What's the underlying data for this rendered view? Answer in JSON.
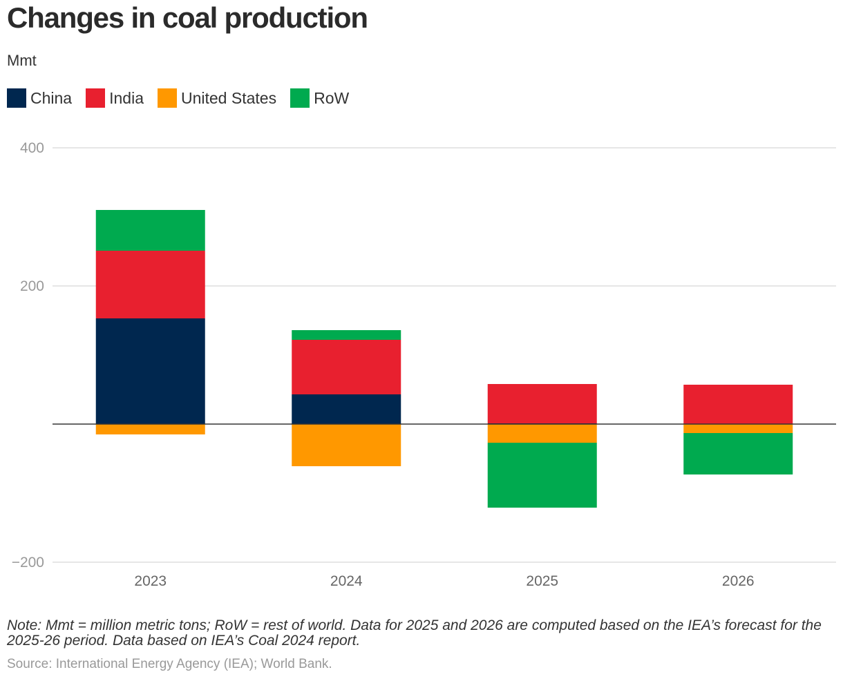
{
  "title": "Changes in coal production",
  "unit": "Mmt",
  "note": "Note: Mmt = million metric tons; RoW = rest of world. Data for 2025 and 2026 are computed based on the IEA’s forecast for the 2025-26 period. Data based on IEA’s Coal 2024 report.",
  "source": "Source: International Energy Agency (IEA); World Bank.",
  "legend": [
    {
      "label": "China",
      "color": "#00274f"
    },
    {
      "label": "India",
      "color": "#e8202f"
    },
    {
      "label": "United States",
      "color": "#ff9800"
    },
    {
      "label": "RoW",
      "color": "#00aa4f"
    }
  ],
  "chart_data": {
    "type": "bar",
    "stacked": true,
    "categories": [
      "2023",
      "2024",
      "2025",
      "2026"
    ],
    "series": [
      {
        "name": "China",
        "color": "#00274f",
        "values": [
          153,
          43,
          1,
          0
        ]
      },
      {
        "name": "India",
        "color": "#e8202f",
        "values": [
          98,
          79,
          57,
          57
        ]
      },
      {
        "name": "United States",
        "color": "#ff9800",
        "values": [
          -15,
          -61,
          -27,
          -13
        ]
      },
      {
        "name": "RoW",
        "color": "#00aa4f",
        "values": [
          59,
          14,
          -94,
          -60
        ]
      }
    ],
    "ylim": [
      -200,
      400
    ],
    "yticks": [
      {
        "value": 400,
        "label": "400"
      },
      {
        "value": 200,
        "label": "200"
      },
      {
        "value": -200,
        "label": "−200"
      }
    ],
    "grid": true,
    "legend_position": "top-left"
  }
}
